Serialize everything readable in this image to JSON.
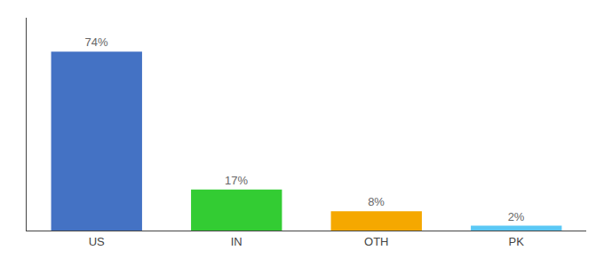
{
  "chart_data": {
    "type": "bar",
    "categories": [
      "US",
      "IN",
      "OTH",
      "PK"
    ],
    "values": [
      74,
      17,
      8,
      2
    ],
    "value_labels": [
      "74%",
      "17%",
      "8%",
      "2%"
    ],
    "data_labels": true,
    "colors": [
      "#4472c4",
      "#33cc33",
      "#f5a800",
      "#5bc8f5"
    ],
    "ylim": [
      0,
      88
    ],
    "grid": false,
    "tick_labels": "x"
  }
}
